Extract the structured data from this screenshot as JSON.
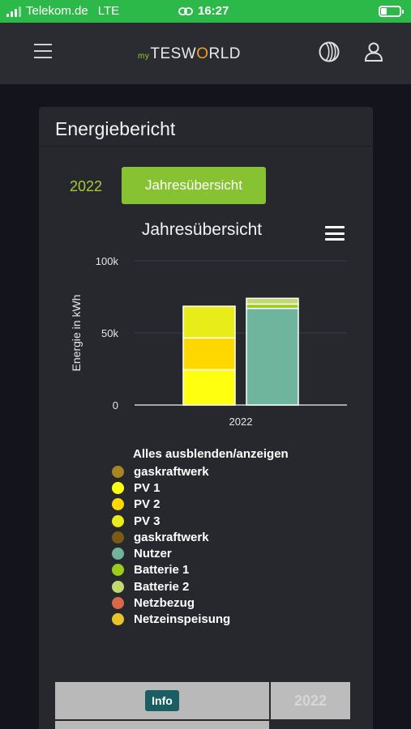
{
  "status_bar": {
    "carrier": "Telekom.de",
    "network": "LTE",
    "time": "16:27"
  },
  "header": {
    "logo_my": "my",
    "logo_pre": "TESW",
    "logo_o": "O",
    "logo_post": "RLD",
    "icons": [
      "hamburger-menu-icon",
      "globe-icon",
      "user-icon"
    ]
  },
  "card": {
    "title": "Energiebericht",
    "year": "2022",
    "tab_label": "Jahresübersicht"
  },
  "chart_data": {
    "type": "bar",
    "title": "Jahresübersicht",
    "ylabel": "Energie in kWh",
    "xlabel": "",
    "categories": [
      "2022"
    ],
    "ylim": [
      0,
      100000
    ],
    "y_ticks": [
      "0",
      "50k",
      "100k"
    ],
    "stacked": true,
    "series": [
      {
        "name": "gaskraftwerk",
        "stack": "Erzeugung",
        "color": "#a98420",
        "values": [
          0
        ]
      },
      {
        "name": "PV 1",
        "stack": "Erzeugung",
        "color": "#ffff10",
        "values": [
          24500
        ]
      },
      {
        "name": "PV 2",
        "stack": "Erzeugung",
        "color": "#ffd800",
        "values": [
          22000
        ]
      },
      {
        "name": "PV 3",
        "stack": "Erzeugung",
        "color": "#e8ec18",
        "values": [
          22000
        ]
      },
      {
        "name": "gaskraftwerk",
        "stack": "Verbrauch",
        "color": "#7a5a14",
        "values": [
          0
        ]
      },
      {
        "name": "Nutzer",
        "stack": "Verbrauch",
        "color": "#6fb49c",
        "values": [
          67000
        ]
      },
      {
        "name": "Batterie 1",
        "stack": "Verbrauch",
        "color": "#9ccc1c",
        "values": [
          3000
        ]
      },
      {
        "name": "Batterie 2",
        "stack": "Verbrauch",
        "color": "#c2d870",
        "values": [
          4000
        ]
      },
      {
        "name": "Netzbezug",
        "stack": "Verbrauch",
        "color": "#d96848",
        "values": [
          0
        ]
      },
      {
        "name": "Netzeinspeisung",
        "stack": "Verbrauch",
        "color": "#e8c42c",
        "values": [
          0
        ]
      }
    ],
    "legend": {
      "toggle_label": "Alles ausblenden/anzeigen",
      "placement": "bottom"
    },
    "grid": true
  },
  "table": {
    "info_label": "Info",
    "year_label": "2022"
  }
}
